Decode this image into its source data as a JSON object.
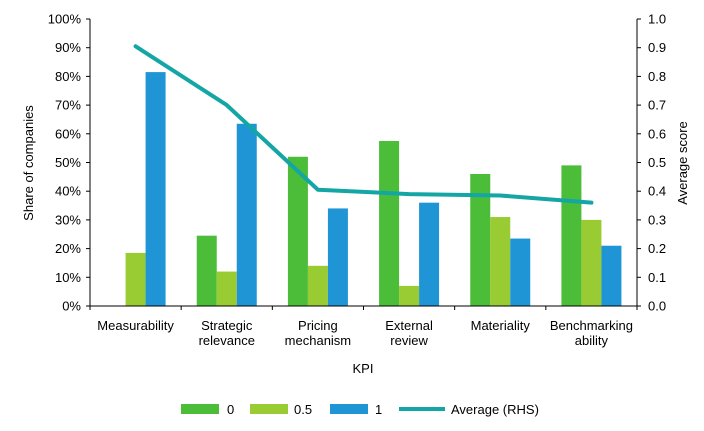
{
  "chart_data": {
    "type": "bar",
    "title": "",
    "xlabel": "KPI",
    "ylabel": "Share of companies",
    "y2label": "Average score",
    "ylim": [
      0,
      100
    ],
    "y2lim": [
      0,
      1.0
    ],
    "yticks": [
      "0%",
      "10%",
      "20%",
      "30%",
      "40%",
      "50%",
      "60%",
      "70%",
      "80%",
      "90%",
      "100%"
    ],
    "y2ticks": [
      "0.0",
      "0.1",
      "0.2",
      "0.3",
      "0.4",
      "0.5",
      "0.6",
      "0.7",
      "0.8",
      "0.9",
      "1.0"
    ],
    "categories": [
      [
        "Measurability"
      ],
      [
        "Strategic",
        "relevance"
      ],
      [
        "Pricing",
        "mechanism"
      ],
      [
        "External",
        "review"
      ],
      [
        "Materiality"
      ],
      [
        "Benchmarking",
        "ability"
      ]
    ],
    "series": [
      {
        "name": "0",
        "type": "bar",
        "color": "#4cbd38",
        "values": [
          0,
          24.5,
          52,
          57.5,
          46,
          49
        ]
      },
      {
        "name": "0.5",
        "type": "bar",
        "color": "#99cc33",
        "values": [
          18.5,
          12,
          14,
          7,
          31,
          30
        ]
      },
      {
        "name": "1",
        "type": "bar",
        "color": "#1f95d6",
        "values": [
          81.5,
          63.5,
          34,
          36,
          23.5,
          21
        ]
      },
      {
        "name": "Average (RHS)",
        "type": "line",
        "axis": "right",
        "color": "#14a5a5",
        "values": [
          0.905,
          0.7,
          0.405,
          0.39,
          0.385,
          0.36
        ]
      }
    ],
    "grid": false,
    "legend_position": "bottom"
  }
}
